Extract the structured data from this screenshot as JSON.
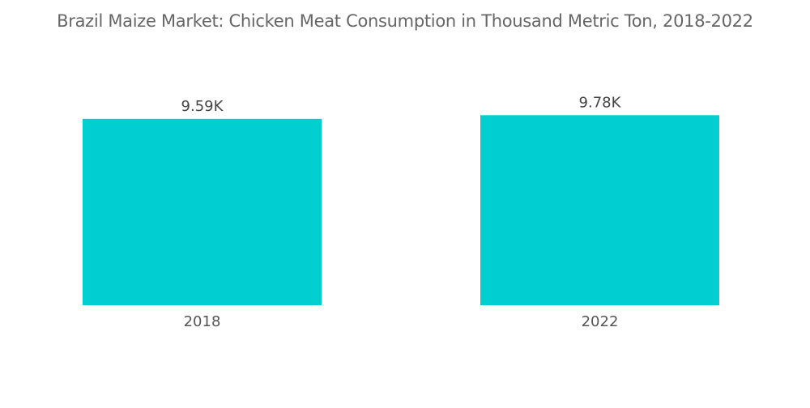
{
  "chart_data": {
    "type": "bar",
    "title": "Brazil Maize Market: Chicken Meat Consumption in Thousand Metric Ton, 2018-2022",
    "categories": [
      "2018",
      "2022"
    ],
    "values": [
      9.59,
      9.78
    ],
    "data_labels": [
      "9.59K",
      "9.78K"
    ],
    "xlabel": "",
    "ylabel": "",
    "ylim": [
      0,
      10
    ],
    "grid": false,
    "legend": "none",
    "bar_color": "#00CED1"
  }
}
